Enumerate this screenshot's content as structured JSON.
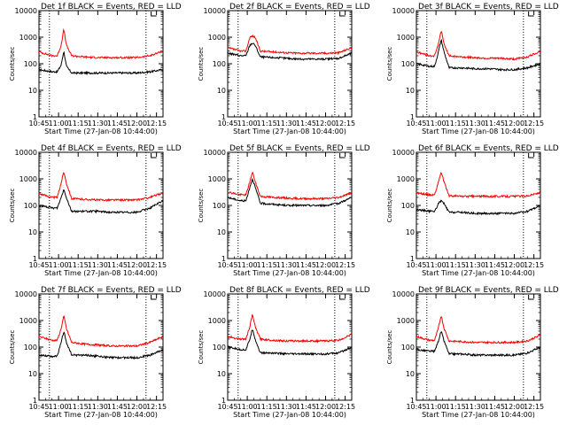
{
  "figure": {
    "grid": "3x3",
    "colors": {
      "events": "#000000",
      "lld": "#ff0000",
      "marker": "#000000",
      "axis": "#000000"
    }
  },
  "chart_data": [
    {
      "type": "line",
      "panel": 1,
      "title": "Det 1f BLACK = Events, RED = LLD",
      "xlabel": "Start Time (27-Jan-08 10:44:00)",
      "ylabel": "Counts/sec",
      "xlim": [
        "10:45",
        "12:20"
      ],
      "ylim": [
        1,
        10000
      ],
      "yscale": "log",
      "grid": false,
      "legend": "none",
      "xticks": [
        "10:45",
        "11:00",
        "11:15",
        "11:30",
        "11:45",
        "12:00",
        "12:15"
      ],
      "yticks": [
        "1",
        "10",
        "100",
        "1000",
        "10000"
      ],
      "markers": [
        "10:53",
        "12:07"
      ],
      "x": [
        "10:45",
        "10:55",
        "10:59",
        "11:02",
        "11:04",
        "11:06",
        "11:10",
        "11:20",
        "11:30",
        "11:40",
        "11:50",
        "12:00",
        "12:10",
        "12:20"
      ],
      "series": [
        {
          "name": "BLACK = Events",
          "values": [
            60,
            50,
            50,
            90,
            300,
            80,
            45,
            45,
            45,
            45,
            45,
            45,
            50,
            60
          ]
        },
        {
          "name": "RED = LLD",
          "values": [
            280,
            200,
            200,
            500,
            2000,
            500,
            200,
            180,
            170,
            170,
            170,
            170,
            200,
            300
          ]
        }
      ]
    },
    {
      "type": "line",
      "panel": 2,
      "title": "Det 2f BLACK = Events, RED = LLD",
      "xlabel": "Start Time (27-Jan-08 10:44:00)",
      "ylabel": "Counts/sec",
      "xlim": [
        "10:45",
        "12:20"
      ],
      "ylim": [
        1,
        10000
      ],
      "yscale": "log",
      "grid": false,
      "legend": "none",
      "xticks": [
        "10:45",
        "11:00",
        "11:15",
        "11:30",
        "11:45",
        "12:00",
        "12:15"
      ],
      "yticks": [
        "1",
        "10",
        "100",
        "1000",
        "10000"
      ],
      "markers": [
        "10:53",
        "12:07"
      ],
      "x": [
        "10:45",
        "10:55",
        "10:59",
        "11:02",
        "11:04",
        "11:06",
        "11:10",
        "11:20",
        "11:30",
        "11:40",
        "11:50",
        "12:00",
        "12:10",
        "12:20"
      ],
      "series": [
        {
          "name": "BLACK = Events",
          "values": [
            250,
            200,
            200,
            500,
            600,
            500,
            180,
            170,
            160,
            150,
            150,
            150,
            160,
            250
          ]
        },
        {
          "name": "RED = LLD",
          "values": [
            400,
            300,
            300,
            1000,
            1100,
            1000,
            300,
            280,
            260,
            250,
            250,
            250,
            260,
            400
          ]
        }
      ]
    },
    {
      "type": "line",
      "panel": 3,
      "title": "Det 3f BLACK = Events, RED = LLD",
      "xlabel": "Start Time (27-Jan-08 10:44:00)",
      "ylabel": "Counts/sec",
      "xlim": [
        "10:45",
        "12:20"
      ],
      "ylim": [
        1,
        10000
      ],
      "yscale": "log",
      "grid": false,
      "legend": "none",
      "xticks": [
        "10:45",
        "11:00",
        "11:15",
        "11:30",
        "11:45",
        "12:00",
        "12:15"
      ],
      "yticks": [
        "1",
        "10",
        "100",
        "1000",
        "10000"
      ],
      "markers": [
        "10:53",
        "12:07"
      ],
      "x": [
        "10:45",
        "10:55",
        "10:59",
        "11:02",
        "11:04",
        "11:06",
        "11:10",
        "11:20",
        "11:30",
        "11:40",
        "11:50",
        "12:00",
        "12:10",
        "12:20"
      ],
      "series": [
        {
          "name": "BLACK = Events",
          "values": [
            100,
            80,
            80,
            300,
            800,
            300,
            70,
            70,
            65,
            65,
            60,
            60,
            70,
            100
          ]
        },
        {
          "name": "RED = LLD",
          "values": [
            280,
            200,
            200,
            600,
            1800,
            600,
            200,
            180,
            170,
            160,
            160,
            150,
            180,
            300
          ]
        }
      ]
    },
    {
      "type": "line",
      "panel": 4,
      "title": "Det 4f BLACK = Events, RED = LLD",
      "xlabel": "Start Time (27-Jan-08 10:44:00)",
      "ylabel": "Counts/sec",
      "xlim": [
        "10:45",
        "12:20"
      ],
      "ylim": [
        1,
        10000
      ],
      "yscale": "log",
      "grid": false,
      "legend": "none",
      "xticks": [
        "10:45",
        "11:00",
        "11:15",
        "11:30",
        "11:45",
        "12:00",
        "12:15"
      ],
      "yticks": [
        "1",
        "10",
        "100",
        "1000",
        "10000"
      ],
      "markers": [
        "10:53",
        "12:07"
      ],
      "x": [
        "10:45",
        "10:55",
        "10:59",
        "11:02",
        "11:04",
        "11:06",
        "11:10",
        "11:20",
        "11:30",
        "11:40",
        "11:50",
        "12:00",
        "12:10",
        "12:20"
      ],
      "series": [
        {
          "name": "BLACK = Events",
          "values": [
            100,
            80,
            80,
            200,
            400,
            200,
            60,
            60,
            60,
            55,
            55,
            55,
            80,
            150
          ]
        },
        {
          "name": "RED = LLD",
          "values": [
            280,
            200,
            200,
            700,
            1900,
            700,
            180,
            170,
            160,
            160,
            160,
            160,
            200,
            300
          ]
        }
      ]
    },
    {
      "type": "line",
      "panel": 5,
      "title": "Det 5f BLACK = Events, RED = LLD",
      "xlabel": "Start Time (27-Jan-08 10:44:00)",
      "ylabel": "Counts/sec",
      "xlim": [
        "10:45",
        "12:20"
      ],
      "ylim": [
        1,
        10000
      ],
      "yscale": "log",
      "grid": false,
      "legend": "none",
      "xticks": [
        "10:45",
        "11:00",
        "11:15",
        "11:30",
        "11:45",
        "12:00",
        "12:15"
      ],
      "yticks": [
        "1",
        "10",
        "100",
        "1000",
        "10000"
      ],
      "markers": [
        "10:53",
        "12:07"
      ],
      "x": [
        "10:45",
        "10:55",
        "10:59",
        "11:02",
        "11:04",
        "11:06",
        "11:10",
        "11:20",
        "11:30",
        "11:40",
        "11:50",
        "12:00",
        "12:10",
        "12:20"
      ],
      "series": [
        {
          "name": "BLACK = Events",
          "values": [
            200,
            150,
            150,
            500,
            1000,
            500,
            120,
            110,
            100,
            100,
            100,
            100,
            120,
            200
          ]
        },
        {
          "name": "RED = LLD",
          "values": [
            320,
            250,
            250,
            800,
            1800,
            800,
            220,
            200,
            190,
            180,
            180,
            180,
            200,
            300
          ]
        }
      ]
    },
    {
      "type": "line",
      "panel": 6,
      "title": "Det 6f BLACK = Events, RED = LLD",
      "xlabel": "Start Time (27-Jan-08 10:44:00)",
      "ylabel": "Counts/sec",
      "xlim": [
        "10:45",
        "12:20"
      ],
      "ylim": [
        1,
        10000
      ],
      "yscale": "log",
      "grid": false,
      "legend": "none",
      "xticks": [
        "10:45",
        "11:00",
        "11:15",
        "11:30",
        "11:45",
        "12:00",
        "12:15"
      ],
      "yticks": [
        "1",
        "10",
        "100",
        "1000",
        "10000"
      ],
      "markers": [
        "10:53",
        "12:07"
      ],
      "x": [
        "10:45",
        "10:55",
        "10:59",
        "11:02",
        "11:04",
        "11:06",
        "11:10",
        "11:20",
        "11:30",
        "11:40",
        "11:50",
        "12:00",
        "12:10",
        "12:20"
      ],
      "series": [
        {
          "name": "BLACK = Events",
          "values": [
            70,
            60,
            60,
            120,
            150,
            120,
            55,
            55,
            50,
            50,
            50,
            50,
            60,
            100
          ]
        },
        {
          "name": "RED = LLD",
          "values": [
            300,
            250,
            250,
            800,
            1800,
            800,
            230,
            220,
            220,
            220,
            220,
            220,
            230,
            300
          ]
        }
      ]
    },
    {
      "type": "line",
      "panel": 7,
      "title": "Det 7f BLACK = Events, RED = LLD",
      "xlabel": "Start Time (27-Jan-08 10:44:00)",
      "ylabel": "Counts/sec",
      "xlim": [
        "10:45",
        "12:20"
      ],
      "ylim": [
        1,
        10000
      ],
      "yscale": "log",
      "grid": false,
      "legend": "none",
      "xticks": [
        "10:45",
        "11:00",
        "11:15",
        "11:30",
        "11:45",
        "12:00",
        "12:15"
      ],
      "yticks": [
        "1",
        "10",
        "100",
        "1000",
        "10000"
      ],
      "markers": [
        "10:53",
        "12:07"
      ],
      "x": [
        "10:45",
        "10:55",
        "10:59",
        "11:02",
        "11:04",
        "11:06",
        "11:10",
        "11:20",
        "11:30",
        "11:40",
        "11:50",
        "12:00",
        "12:10",
        "12:20"
      ],
      "series": [
        {
          "name": "BLACK = Events",
          "values": [
            50,
            45,
            45,
            150,
            400,
            150,
            50,
            50,
            45,
            40,
            40,
            40,
            50,
            80
          ]
        },
        {
          "name": "RED = LLD",
          "values": [
            250,
            180,
            180,
            500,
            1500,
            500,
            150,
            130,
            120,
            110,
            110,
            110,
            150,
            250
          ]
        }
      ]
    },
    {
      "type": "line",
      "panel": 8,
      "title": "Det 8f BLACK = Events, RED = LLD",
      "xlabel": "Start Time (27-Jan-08 10:44:00)",
      "ylabel": "Counts/sec",
      "xlim": [
        "10:45",
        "12:20"
      ],
      "ylim": [
        1,
        10000
      ],
      "yscale": "log",
      "grid": false,
      "legend": "none",
      "xticks": [
        "10:45",
        "11:00",
        "11:15",
        "11:30",
        "11:45",
        "12:00",
        "12:15"
      ],
      "yticks": [
        "1",
        "10",
        "100",
        "1000",
        "10000"
      ],
      "markers": [
        "10:53",
        "12:07"
      ],
      "x": [
        "10:45",
        "10:55",
        "10:59",
        "11:02",
        "11:04",
        "11:06",
        "11:10",
        "11:20",
        "11:30",
        "11:40",
        "11:50",
        "12:00",
        "12:10",
        "12:20"
      ],
      "series": [
        {
          "name": "BLACK = Events",
          "values": [
            100,
            80,
            80,
            200,
            500,
            200,
            60,
            60,
            55,
            55,
            55,
            55,
            60,
            100
          ]
        },
        {
          "name": "RED = LLD",
          "values": [
            250,
            200,
            200,
            600,
            1700,
            600,
            200,
            180,
            170,
            170,
            170,
            170,
            180,
            300
          ]
        }
      ]
    },
    {
      "type": "line",
      "panel": 9,
      "title": "Det 9f BLACK = Events, RED = LLD",
      "xlabel": "Start Time (27-Jan-08 10:44:00)",
      "ylabel": "Counts/sec",
      "xlim": [
        "10:45",
        "12:20"
      ],
      "ylim": [
        1,
        10000
      ],
      "yscale": "log",
      "grid": false,
      "legend": "none",
      "xticks": [
        "10:45",
        "11:00",
        "11:15",
        "11:30",
        "11:45",
        "12:00",
        "12:15"
      ],
      "yticks": [
        "1",
        "10",
        "100",
        "1000",
        "10000"
      ],
      "markers": [
        "10:53",
        "12:07"
      ],
      "x": [
        "10:45",
        "10:55",
        "10:59",
        "11:02",
        "11:04",
        "11:06",
        "11:10",
        "11:20",
        "11:30",
        "11:40",
        "11:50",
        "12:00",
        "12:10",
        "12:20"
      ],
      "series": [
        {
          "name": "BLACK = Events",
          "values": [
            80,
            70,
            70,
            180,
            400,
            180,
            55,
            55,
            50,
            50,
            50,
            50,
            60,
            100
          ]
        },
        {
          "name": "RED = LLD",
          "values": [
            250,
            180,
            180,
            550,
            1600,
            550,
            170,
            160,
            150,
            150,
            150,
            150,
            170,
            280
          ]
        }
      ]
    }
  ]
}
